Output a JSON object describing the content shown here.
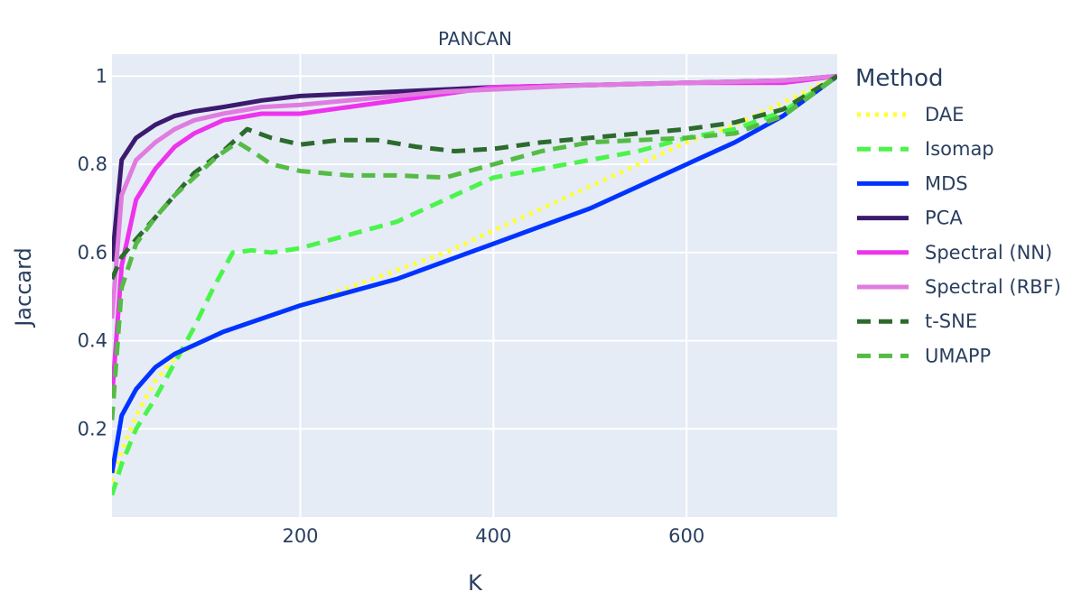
{
  "chart_data": {
    "type": "line",
    "title": "PANCAN",
    "xlabel": "K",
    "ylabel": "Jaccard",
    "xlim": [
      5,
      756
    ],
    "ylim": [
      0,
      1.05
    ],
    "x_ticks": [
      200,
      400,
      600
    ],
    "x_tick_labels": [
      "200",
      "400",
      "600"
    ],
    "y_ticks": [
      0.2,
      0.4,
      0.6,
      0.8,
      1
    ],
    "y_tick_labels": [
      "0.2",
      "0.4",
      "0.6",
      "0.8",
      "1"
    ],
    "grid": true,
    "plot_bgcolor": "#e5ecf6",
    "legend_title": "Method",
    "legend_position": "right",
    "series": [
      {
        "name": "DAE",
        "color": "#ffff33",
        "dash": "dot",
        "points": [
          [
            5,
            0.08
          ],
          [
            15,
            0.15
          ],
          [
            30,
            0.23
          ],
          [
            50,
            0.31
          ],
          [
            70,
            0.36
          ],
          [
            90,
            0.39
          ],
          [
            120,
            0.42
          ],
          [
            160,
            0.45
          ],
          [
            200,
            0.48
          ],
          [
            250,
            0.52
          ],
          [
            300,
            0.56
          ],
          [
            350,
            0.6
          ],
          [
            400,
            0.65
          ],
          [
            450,
            0.7
          ],
          [
            500,
            0.75
          ],
          [
            550,
            0.8
          ],
          [
            600,
            0.85
          ],
          [
            650,
            0.89
          ],
          [
            700,
            0.94
          ],
          [
            756,
            1.0
          ]
        ]
      },
      {
        "name": "Isomap",
        "color": "#4bf44b",
        "dash": "dash",
        "points": [
          [
            5,
            0.05
          ],
          [
            15,
            0.12
          ],
          [
            30,
            0.2
          ],
          [
            50,
            0.27
          ],
          [
            70,
            0.35
          ],
          [
            90,
            0.43
          ],
          [
            110,
            0.52
          ],
          [
            130,
            0.6
          ],
          [
            150,
            0.605
          ],
          [
            170,
            0.6
          ],
          [
            200,
            0.61
          ],
          [
            250,
            0.64
          ],
          [
            300,
            0.67
          ],
          [
            350,
            0.72
          ],
          [
            400,
            0.77
          ],
          [
            450,
            0.79
          ],
          [
            500,
            0.81
          ],
          [
            550,
            0.83
          ],
          [
            600,
            0.86
          ],
          [
            650,
            0.88
          ],
          [
            700,
            0.92
          ],
          [
            756,
            1.0
          ]
        ]
      },
      {
        "name": "MDS",
        "color": "#0033ff",
        "dash": "solid",
        "points": [
          [
            5,
            0.1
          ],
          [
            15,
            0.23
          ],
          [
            30,
            0.29
          ],
          [
            50,
            0.34
          ],
          [
            70,
            0.37
          ],
          [
            90,
            0.39
          ],
          [
            120,
            0.42
          ],
          [
            160,
            0.45
          ],
          [
            200,
            0.48
          ],
          [
            250,
            0.51
          ],
          [
            300,
            0.54
          ],
          [
            350,
            0.58
          ],
          [
            400,
            0.62
          ],
          [
            450,
            0.66
          ],
          [
            500,
            0.7
          ],
          [
            550,
            0.75
          ],
          [
            600,
            0.8
          ],
          [
            650,
            0.85
          ],
          [
            700,
            0.91
          ],
          [
            756,
            1.0
          ]
        ]
      },
      {
        "name": "PCA",
        "color": "#3b1b6e",
        "dash": "solid",
        "points": [
          [
            5,
            0.58
          ],
          [
            15,
            0.81
          ],
          [
            30,
            0.86
          ],
          [
            50,
            0.89
          ],
          [
            70,
            0.91
          ],
          [
            90,
            0.92
          ],
          [
            120,
            0.93
          ],
          [
            160,
            0.945
          ],
          [
            200,
            0.955
          ],
          [
            250,
            0.96
          ],
          [
            300,
            0.965
          ],
          [
            350,
            0.97
          ],
          [
            400,
            0.975
          ],
          [
            500,
            0.98
          ],
          [
            600,
            0.985
          ],
          [
            700,
            0.99
          ],
          [
            756,
            1.0
          ]
        ]
      },
      {
        "name": "Spectral (NN)",
        "color": "#ee33ee",
        "dash": "solid",
        "points": [
          [
            5,
            0.27
          ],
          [
            15,
            0.57
          ],
          [
            30,
            0.72
          ],
          [
            50,
            0.79
          ],
          [
            70,
            0.84
          ],
          [
            90,
            0.87
          ],
          [
            120,
            0.9
          ],
          [
            160,
            0.915
          ],
          [
            200,
            0.915
          ],
          [
            250,
            0.93
          ],
          [
            300,
            0.945
          ],
          [
            350,
            0.96
          ],
          [
            400,
            0.975
          ],
          [
            500,
            0.98
          ],
          [
            600,
            0.985
          ],
          [
            700,
            0.985
          ],
          [
            756,
            1.0
          ]
        ]
      },
      {
        "name": "Spectral (RBF)",
        "color": "#e07ce0",
        "dash": "solid",
        "points": [
          [
            5,
            0.45
          ],
          [
            15,
            0.73
          ],
          [
            30,
            0.81
          ],
          [
            50,
            0.85
          ],
          [
            70,
            0.88
          ],
          [
            90,
            0.9
          ],
          [
            120,
            0.915
          ],
          [
            160,
            0.93
          ],
          [
            200,
            0.935
          ],
          [
            250,
            0.945
          ],
          [
            300,
            0.955
          ],
          [
            350,
            0.965
          ],
          [
            400,
            0.97
          ],
          [
            500,
            0.98
          ],
          [
            600,
            0.985
          ],
          [
            700,
            0.99
          ],
          [
            756,
            1.0
          ]
        ]
      },
      {
        "name": "t-SNE",
        "color": "#2d6a2d",
        "dash": "dash",
        "points": [
          [
            5,
            0.54
          ],
          [
            15,
            0.59
          ],
          [
            30,
            0.63
          ],
          [
            50,
            0.68
          ],
          [
            70,
            0.73
          ],
          [
            90,
            0.78
          ],
          [
            120,
            0.83
          ],
          [
            145,
            0.88
          ],
          [
            170,
            0.86
          ],
          [
            200,
            0.845
          ],
          [
            240,
            0.855
          ],
          [
            280,
            0.855
          ],
          [
            320,
            0.84
          ],
          [
            360,
            0.83
          ],
          [
            400,
            0.835
          ],
          [
            450,
            0.85
          ],
          [
            500,
            0.86
          ],
          [
            550,
            0.87
          ],
          [
            600,
            0.88
          ],
          [
            650,
            0.895
          ],
          [
            700,
            0.925
          ],
          [
            756,
            1.0
          ]
        ]
      },
      {
        "name": "UMAPP",
        "color": "#55bb44",
        "dash": "dash",
        "points": [
          [
            5,
            0.22
          ],
          [
            15,
            0.52
          ],
          [
            30,
            0.62
          ],
          [
            50,
            0.68
          ],
          [
            70,
            0.73
          ],
          [
            90,
            0.77
          ],
          [
            115,
            0.82
          ],
          [
            135,
            0.85
          ],
          [
            150,
            0.83
          ],
          [
            170,
            0.8
          ],
          [
            200,
            0.785
          ],
          [
            250,
            0.775
          ],
          [
            300,
            0.775
          ],
          [
            350,
            0.77
          ],
          [
            400,
            0.8
          ],
          [
            450,
            0.83
          ],
          [
            500,
            0.85
          ],
          [
            550,
            0.855
          ],
          [
            600,
            0.86
          ],
          [
            650,
            0.87
          ],
          [
            700,
            0.91
          ],
          [
            756,
            1.0
          ]
        ]
      }
    ]
  }
}
